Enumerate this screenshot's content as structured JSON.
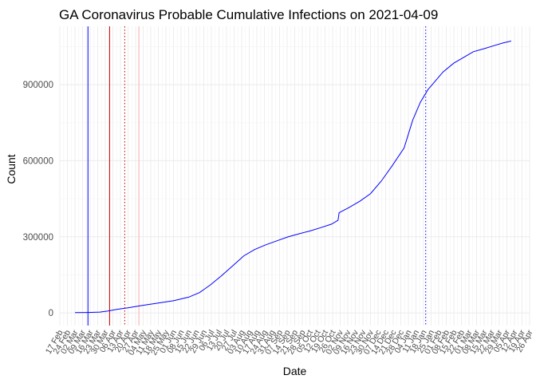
{
  "chart_data": {
    "type": "line",
    "title": "GA Coronavirus Probable Cumulative Infections on 2021-04-09",
    "xlabel": "Date",
    "ylabel": "Count",
    "xlim": [
      "2020-02-17",
      "2021-04-26"
    ],
    "ylim": [
      -50000,
      1130000
    ],
    "yticks": [
      0,
      300000,
      600000,
      900000
    ],
    "ytick_labels": [
      "0",
      "300000",
      "600000",
      "900000"
    ],
    "xticks": [
      "2020-02-17",
      "2020-02-24",
      "2020-03-02",
      "2020-03-09",
      "2020-03-16",
      "2020-03-23",
      "2020-03-30",
      "2020-04-06",
      "2020-04-13",
      "2020-04-20",
      "2020-04-27",
      "2020-05-04",
      "2020-05-11",
      "2020-05-18",
      "2020-05-25",
      "2020-06-01",
      "2020-06-08",
      "2020-06-15",
      "2020-06-22",
      "2020-06-29",
      "2020-07-06",
      "2020-07-13",
      "2020-07-20",
      "2020-07-27",
      "2020-08-03",
      "2020-08-10",
      "2020-08-17",
      "2020-08-24",
      "2020-08-31",
      "2020-09-07",
      "2020-09-14",
      "2020-09-21",
      "2020-09-28",
      "2020-10-05",
      "2020-10-12",
      "2020-10-19",
      "2020-10-26",
      "2020-11-02",
      "2020-11-09",
      "2020-11-16",
      "2020-11-23",
      "2020-11-30",
      "2020-12-07",
      "2020-12-14",
      "2020-12-21",
      "2020-12-28",
      "2021-01-04",
      "2021-01-11",
      "2021-01-18",
      "2021-01-25",
      "2021-02-01",
      "2021-02-08",
      "2021-02-15",
      "2021-02-22",
      "2021-03-01",
      "2021-03-08",
      "2021-03-15",
      "2021-03-22",
      "2021-03-29",
      "2021-04-05",
      "2021-04-12",
      "2021-04-19",
      "2021-04-26"
    ],
    "xtick_labels": [
      "17 Feb",
      "24 Feb",
      "02 Mar",
      "09 Mar",
      "16 Mar",
      "23 Mar",
      "30 Mar",
      "06 Apr",
      "13 Apr",
      "20 Apr",
      "27 Apr",
      "04 May",
      "11 May",
      "18 May",
      "25 May",
      "01 Jun",
      "08 Jun",
      "15 Jun",
      "22 Jun",
      "29 Jun",
      "06 Jul",
      "13 Jul",
      "20 Jul",
      "27 Jul",
      "03 Aug",
      "10 Aug",
      "17 Aug",
      "24 Aug",
      "31 Aug",
      "07 Sep",
      "14 Sep",
      "21 Sep",
      "28 Sep",
      "05 Oct",
      "12 Oct",
      "19 Oct",
      "26 Oct",
      "02 Nov",
      "09 Nov",
      "16 Nov",
      "23 Nov",
      "30 Nov",
      "07 Dec",
      "14 Dec",
      "21 Dec",
      "28 Dec",
      "04 Jan",
      "11 Jan",
      "18 Jan",
      "25 Jan",
      "01 Feb",
      "08 Feb",
      "15 Feb",
      "22 Feb",
      "01 Mar",
      "08 Mar",
      "15 Mar",
      "22 Mar",
      "29 Mar",
      "05 Apr",
      "12 Apr",
      "19 Apr",
      "26 Apr"
    ],
    "grid": true,
    "vlines": [
      {
        "x": "2020-03-14",
        "color": "#0000ff",
        "style": "solid"
      },
      {
        "x": "2020-04-03",
        "color": "#cc0000",
        "style": "solid"
      },
      {
        "x": "2020-04-17",
        "color": "#cc0000",
        "style": "dotted"
      },
      {
        "x": "2020-04-30",
        "color": "#ffb0b0",
        "style": "solid"
      },
      {
        "x": "2021-01-20",
        "color": "#0000ff",
        "style": "dotted"
      }
    ],
    "series": [
      {
        "color": "#0000ff",
        "x": [
          "2020-03-02",
          "2020-03-14",
          "2020-03-25",
          "2020-04-01",
          "2020-04-10",
          "2020-04-20",
          "2020-05-01",
          "2020-05-15",
          "2020-06-01",
          "2020-06-15",
          "2020-06-25",
          "2020-07-05",
          "2020-07-15",
          "2020-07-25",
          "2020-08-05",
          "2020-08-15",
          "2020-08-25",
          "2020-09-05",
          "2020-09-15",
          "2020-09-25",
          "2020-10-05",
          "2020-10-15",
          "2020-10-25",
          "2020-10-31",
          "2020-11-01",
          "2020-11-10",
          "2020-11-20",
          "2020-11-30",
          "2020-12-10",
          "2020-12-20",
          "2020-12-31",
          "2021-01-08",
          "2021-01-15",
          "2021-01-22",
          "2021-01-29",
          "2021-02-05",
          "2021-02-15",
          "2021-02-25",
          "2021-03-05",
          "2021-03-15",
          "2021-03-25",
          "2021-04-02",
          "2021-04-09"
        ],
        "values": [
          1000,
          1500,
          3000,
          7000,
          14000,
          20000,
          28000,
          37000,
          48000,
          62000,
          80000,
          110000,
          145000,
          183000,
          225000,
          250000,
          268000,
          285000,
          300000,
          312000,
          323000,
          336000,
          350000,
          365000,
          395000,
          415000,
          440000,
          470000,
          520000,
          580000,
          650000,
          760000,
          830000,
          880000,
          915000,
          950000,
          985000,
          1010000,
          1030000,
          1042000,
          1055000,
          1065000,
          1072000
        ]
      }
    ]
  }
}
